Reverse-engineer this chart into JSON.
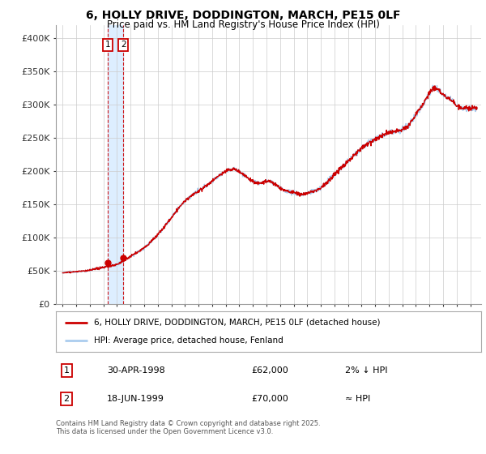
{
  "title_line1": "6, HOLLY DRIVE, DODDINGTON, MARCH, PE15 0LF",
  "title_line2": "Price paid vs. HM Land Registry's House Price Index (HPI)",
  "background_color": "#ffffff",
  "plot_bg_color": "#ffffff",
  "grid_color": "#cccccc",
  "hpi_line_color": "#aaccee",
  "price_line_color": "#cc0000",
  "shade_color": "#ddeeff",
  "ylim": [
    0,
    420000
  ],
  "yticks": [
    0,
    50000,
    100000,
    150000,
    200000,
    250000,
    300000,
    350000,
    400000
  ],
  "ytick_labels": [
    "£0",
    "£50K",
    "£100K",
    "£150K",
    "£200K",
    "£250K",
    "£300K",
    "£350K",
    "£400K"
  ],
  "transaction1_date": "30-APR-1998",
  "transaction1_price": 62000,
  "transaction1_label": "2% ↓ HPI",
  "transaction2_date": "18-JUN-1999",
  "transaction2_price": 70000,
  "transaction2_label": "≈ HPI",
  "legend_label1": "6, HOLLY DRIVE, DODDINGTON, MARCH, PE15 0LF (detached house)",
  "legend_label2": "HPI: Average price, detached house, Fenland",
  "footer_text": "Contains HM Land Registry data © Crown copyright and database right 2025.\nThis data is licensed under the Open Government Licence v3.0.",
  "transaction_box_color": "#cc0000",
  "t1_x": 1998.33,
  "t1_y": 62000,
  "t2_x": 1999.46,
  "t2_y": 70000,
  "xmin": 1995,
  "xmax": 2025.5
}
